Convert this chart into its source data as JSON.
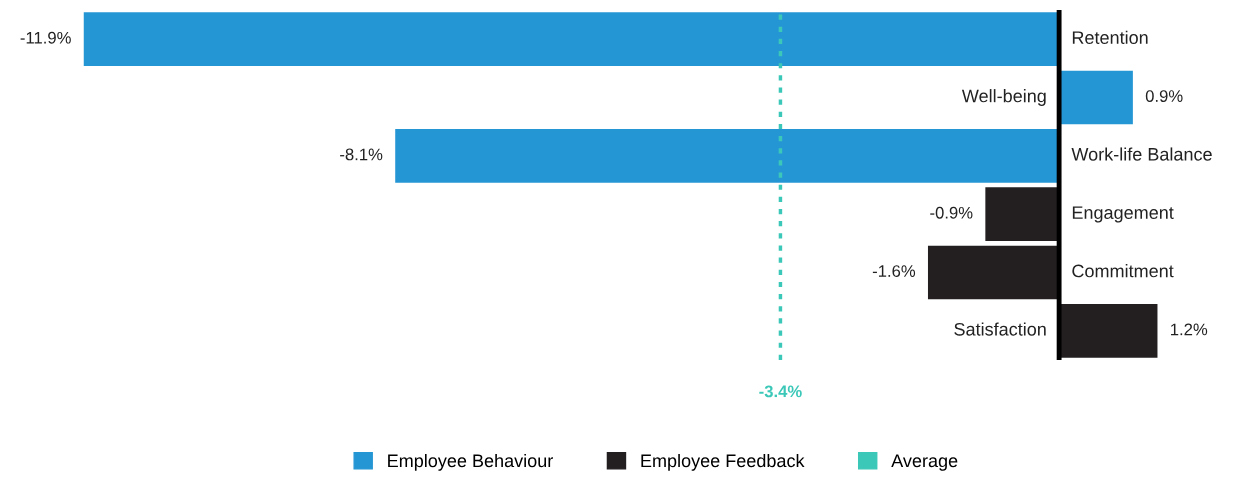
{
  "chart_data": {
    "type": "bar",
    "orientation": "horizontal",
    "categories": [
      "Retention",
      "Well-being",
      "Work-life Balance",
      "Engagement",
      "Commitment",
      "Satisfaction"
    ],
    "series": [
      {
        "name": "Employee Behaviour",
        "color": "#2596d4",
        "values": [
          -11.9,
          0.9,
          -8.1,
          null,
          null,
          null
        ],
        "value_labels": [
          "-11.9%",
          "0.9%",
          "-8.1%",
          null,
          null,
          null
        ]
      },
      {
        "name": "Employee Feedback",
        "color": "#231f20",
        "values": [
          null,
          null,
          null,
          -0.9,
          -1.6,
          1.2
        ],
        "value_labels": [
          null,
          null,
          null,
          "-0.9%",
          "-1.6%",
          "1.2%"
        ]
      }
    ],
    "legend": "bottom",
    "ref_lines": [
      {
        "axis": "x",
        "value": -3.4,
        "label": "Average",
        "color": "#3cc8b8",
        "line_style": "dotted"
      }
    ],
    "annotations": [
      "-3.4%"
    ]
  }
}
